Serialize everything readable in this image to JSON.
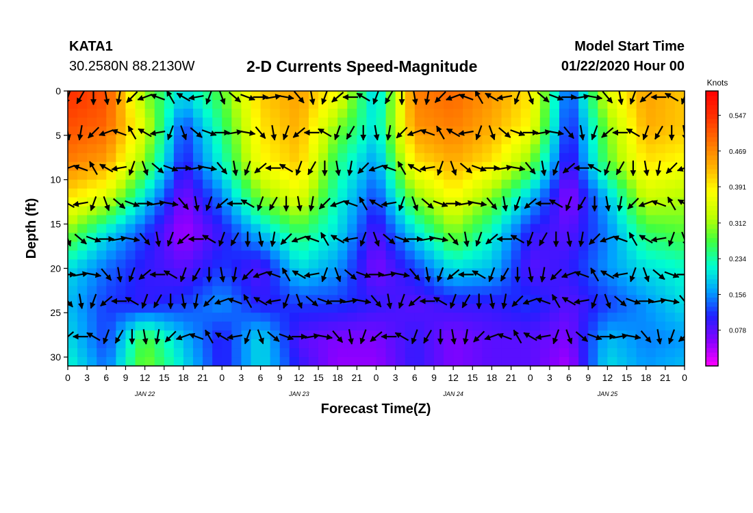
{
  "header": {
    "station_id": "KATA1",
    "coordinates": "30.2580N 88.2130W",
    "title": "2-D Currents Speed-Magnitude",
    "model_start_label": "Model Start Time",
    "model_start_value": "01/22/2020 Hour 00"
  },
  "chart_data": {
    "type": "heatmap",
    "title": "2-D Currents Speed-Magnitude",
    "xlabel": "Forecast Time(Z)",
    "ylabel": "Depth (ft)",
    "colorbar_unit": "Knots",
    "ylim": [
      31,
      0
    ],
    "y_ticks": [
      0,
      5,
      10,
      15,
      20,
      25,
      30
    ],
    "x_tick_labels": [
      "0",
      "3",
      "6",
      "9",
      "12",
      "15",
      "18",
      "21",
      "0",
      "3",
      "6",
      "9",
      "12",
      "15",
      "18",
      "21",
      "0",
      "3",
      "6",
      "9",
      "12",
      "15",
      "18",
      "21",
      "0",
      "3",
      "6",
      "9",
      "12",
      "15",
      "18",
      "21",
      "0"
    ],
    "x_day_labels": [
      {
        "label": "JAN 22",
        "hour": 12
      },
      {
        "label": "JAN 23",
        "hour": 36
      },
      {
        "label": "JAN 24",
        "hour": 60
      },
      {
        "label": "JAN 25",
        "hour": 84
      }
    ],
    "colorbar_ticks": [
      "0.547",
      "0.469",
      "0.391",
      "0.312",
      "0.234",
      "0.156",
      "0.078"
    ],
    "colorbar_tick_values": [
      0.547,
      0.469,
      0.391,
      0.312,
      0.234,
      0.156,
      0.078
    ],
    "speed_range": [
      0,
      0.6
    ],
    "colors": {
      "scale": [
        "#ff00ff",
        "#8a00ff",
        "#2020ff",
        "#00a0ff",
        "#00ffd0",
        "#40ff40",
        "#c0ff00",
        "#ffff00",
        "#ffb000",
        "#ff7000",
        "#ff3000",
        "#ff0000"
      ],
      "arrow": "#000000"
    },
    "depths": [
      0,
      4,
      8,
      12,
      16,
      20,
      24,
      28,
      31
    ],
    "times_h": [
      0,
      6,
      12,
      18,
      24,
      30,
      36,
      42,
      48,
      54,
      60,
      66,
      72,
      78,
      84,
      90,
      96
    ],
    "speed_grid": [
      [
        0.55,
        0.52,
        0.3,
        0.2,
        0.28,
        0.42,
        0.45,
        0.38,
        0.18,
        0.48,
        0.5,
        0.46,
        0.4,
        0.12,
        0.36,
        0.45,
        0.42
      ],
      [
        0.52,
        0.5,
        0.35,
        0.12,
        0.25,
        0.4,
        0.44,
        0.3,
        0.2,
        0.46,
        0.48,
        0.44,
        0.38,
        0.1,
        0.3,
        0.44,
        0.42
      ],
      [
        0.48,
        0.45,
        0.3,
        0.1,
        0.22,
        0.38,
        0.42,
        0.25,
        0.16,
        0.4,
        0.44,
        0.4,
        0.3,
        0.08,
        0.28,
        0.4,
        0.38
      ],
      [
        0.4,
        0.35,
        0.2,
        0.06,
        0.15,
        0.3,
        0.36,
        0.22,
        0.12,
        0.3,
        0.38,
        0.3,
        0.18,
        0.05,
        0.18,
        0.34,
        0.32
      ],
      [
        0.3,
        0.2,
        0.12,
        0.04,
        0.1,
        0.18,
        0.26,
        0.2,
        0.08,
        0.2,
        0.3,
        0.22,
        0.1,
        0.08,
        0.15,
        0.26,
        0.28
      ],
      [
        0.2,
        0.14,
        0.1,
        0.08,
        0.12,
        0.08,
        0.2,
        0.16,
        0.06,
        0.12,
        0.2,
        0.18,
        0.08,
        0.1,
        0.16,
        0.2,
        0.22
      ],
      [
        0.18,
        0.12,
        0.1,
        0.12,
        0.16,
        0.1,
        0.12,
        0.12,
        0.1,
        0.08,
        0.1,
        0.1,
        0.12,
        0.08,
        0.12,
        0.16,
        0.2
      ],
      [
        0.2,
        0.12,
        0.28,
        0.18,
        0.1,
        0.2,
        0.08,
        0.06,
        0.06,
        0.1,
        0.06,
        0.08,
        0.08,
        0.06,
        0.18,
        0.15,
        0.16
      ],
      [
        0.22,
        0.14,
        0.3,
        0.2,
        0.1,
        0.2,
        0.1,
        0.05,
        0.05,
        0.1,
        0.06,
        0.08,
        0.08,
        0.04,
        0.2,
        0.16,
        0.18
      ]
    ],
    "vector_depths": [
      0,
      4,
      8,
      12,
      16,
      20,
      23,
      27
    ],
    "vector_times_h": [
      0,
      2,
      4,
      6,
      8,
      10,
      12,
      14,
      16,
      18,
      20,
      22,
      24,
      26,
      28,
      30,
      32,
      34,
      36,
      38,
      40,
      42,
      44,
      46,
      48,
      50,
      52,
      54,
      56,
      58,
      60,
      62,
      64,
      66,
      68,
      70,
      72,
      74,
      76,
      78,
      80,
      82,
      84,
      86,
      88,
      90,
      92,
      94,
      96
    ],
    "vector_direction_deg_pattern": [
      200,
      210,
      180,
      170,
      190,
      225,
      250,
      290,
      330,
      300,
      260,
      200,
      160,
      130,
      110,
      90,
      80,
      100,
      140,
      170,
      200,
      230,
      270,
      300
    ],
    "grid": true,
    "legend": "right colorbar"
  }
}
